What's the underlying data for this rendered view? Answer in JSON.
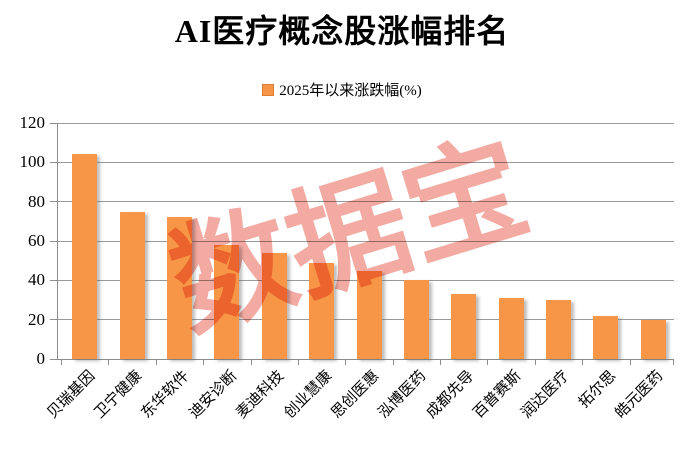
{
  "chart_data": {
    "type": "bar",
    "title": "AI医疗概念股涨幅排名",
    "legend": "2025年以来涨跌幅(%)",
    "watermark": "数据宝",
    "categories": [
      "贝瑞基因",
      "卫宁健康",
      "东华软件",
      "迪安诊断",
      "麦迪科技",
      "创业慧康",
      "思创医惠",
      "泓博医药",
      "成都先导",
      "百普赛斯",
      "润达医疗",
      "拓尔思",
      "皓元医药"
    ],
    "values": [
      104,
      75,
      72,
      58,
      54,
      49,
      45,
      40,
      33,
      31,
      30,
      22,
      20
    ],
    "xlabel": "",
    "ylabel": "",
    "ylim": [
      0,
      120
    ],
    "yticks": [
      0,
      20,
      40,
      60,
      80,
      100,
      120
    ],
    "grid": "on",
    "legend_position": "top-center",
    "bar_color": "#F79646",
    "bar_border_color": "#DD7E33",
    "grid_color": "#9A9A9A",
    "axis_color": "#8C8C8C",
    "watermark_color": "#E85545",
    "title_color": "#000000"
  }
}
